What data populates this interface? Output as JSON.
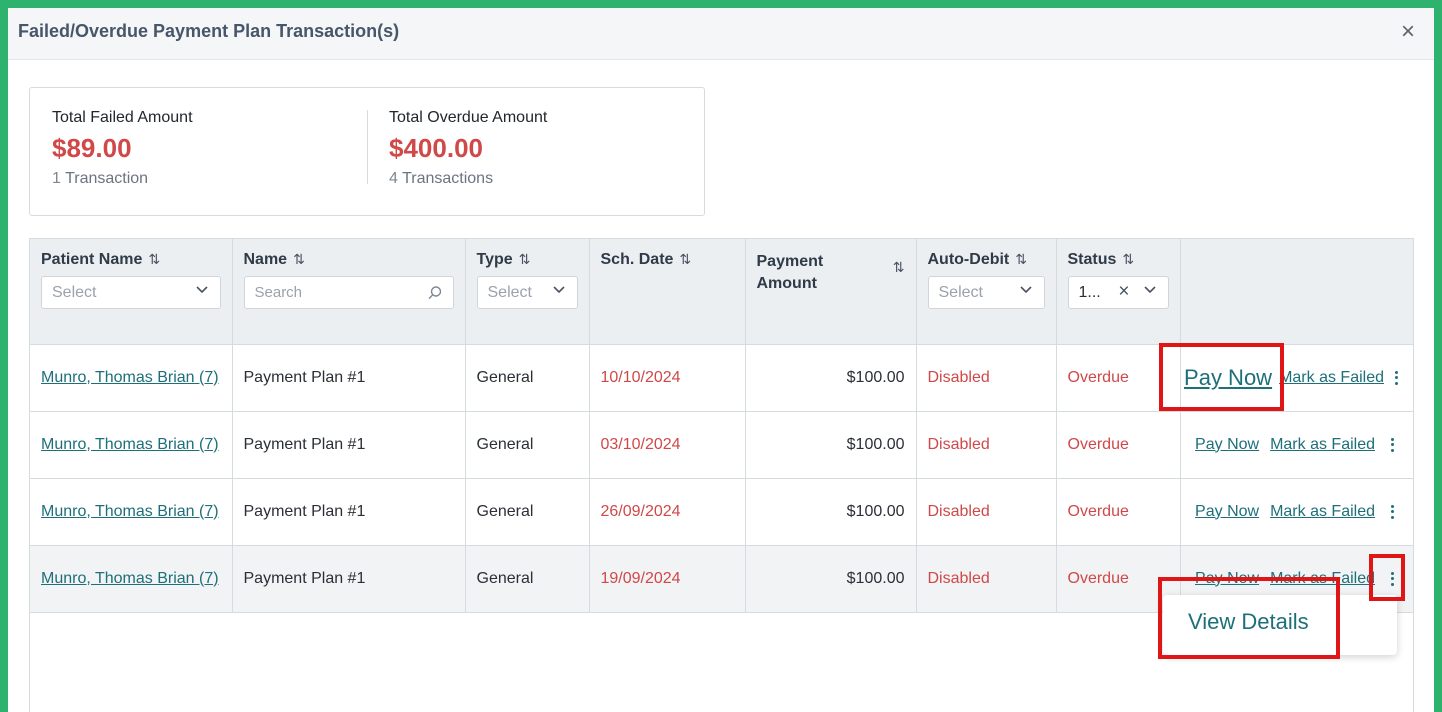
{
  "modal": {
    "title": "Failed/Overdue Payment Plan Transaction(s)",
    "close_label": "×"
  },
  "summary": {
    "failed": {
      "label": "Total Failed Amount",
      "amount": "$89.00",
      "count": "1",
      "count_label": "Transaction"
    },
    "overdue": {
      "label": "Total Overdue Amount",
      "amount": "$400.00",
      "count": "4",
      "count_label": "Transactions"
    }
  },
  "table": {
    "columns": [
      {
        "label": "Patient Name",
        "filter_placeholder": "Select"
      },
      {
        "label": "Name",
        "filter_placeholder": "Search"
      },
      {
        "label": "Type",
        "filter_placeholder": "Select"
      },
      {
        "label": "Sch. Date"
      },
      {
        "label": "Payment Amount"
      },
      {
        "label": "Auto-Debit",
        "filter_placeholder": "Select"
      },
      {
        "label": "Status",
        "filter_value": "1..."
      }
    ],
    "rows": [
      {
        "patient": "Munro, Thomas Brian (7)",
        "name": "Payment Plan #1",
        "type": "General",
        "date": "10/10/2024",
        "amount": "$100.00",
        "auto_debit": "Disabled",
        "status": "Overdue",
        "pay": "Pay Now",
        "mark": "Mark as Failed"
      },
      {
        "patient": "Munro, Thomas Brian (7)",
        "name": "Payment Plan #1",
        "type": "General",
        "date": "03/10/2024",
        "amount": "$100.00",
        "auto_debit": "Disabled",
        "status": "Overdue",
        "pay": "Pay Now",
        "mark": "Mark as Failed"
      },
      {
        "patient": "Munro, Thomas Brian (7)",
        "name": "Payment Plan #1",
        "type": "General",
        "date": "26/09/2024",
        "amount": "$100.00",
        "auto_debit": "Disabled",
        "status": "Overdue",
        "pay": "Pay Now",
        "mark": "Mark as Failed"
      },
      {
        "patient": "Munro, Thomas Brian (7)",
        "name": "Payment Plan #1",
        "type": "General",
        "date": "19/09/2024",
        "amount": "$100.00",
        "auto_debit": "Disabled",
        "status": "Overdue",
        "pay": "Pay Now",
        "mark": "Mark as Failed"
      }
    ]
  },
  "menu": {
    "view_details": "View Details"
  },
  "icons": {
    "sort": "sort-arrows-icon",
    "chevron": "chevron-down-icon",
    "search": "search-icon",
    "clear": "clear-icon",
    "kebab": "kebab-menu-icon"
  },
  "colors": {
    "accent": "#1d6f7a",
    "danger": "#d04848",
    "highlight": "#e01515",
    "frame": "#2db36d"
  }
}
